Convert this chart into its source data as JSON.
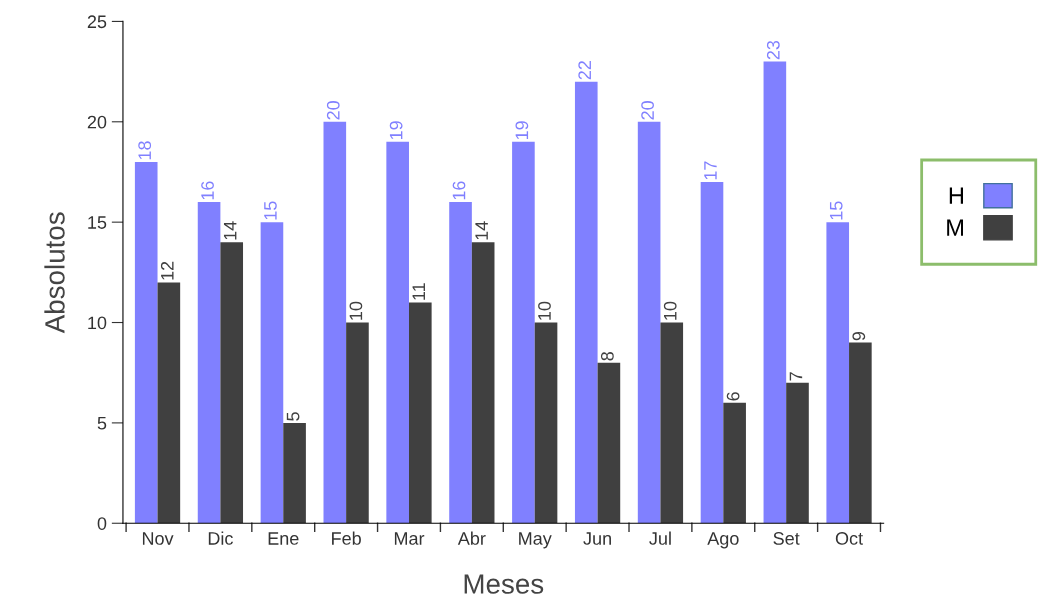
{
  "chart_data": {
    "type": "bar",
    "xlabel": "Meses",
    "ylabel": "Absolutos",
    "categories": [
      "Nov",
      "Dic",
      "Ene",
      "Feb",
      "Mar",
      "Abr",
      "May",
      "Jun",
      "Jul",
      "Ago",
      "Set",
      "Oct"
    ],
    "series": [
      {
        "name": "H",
        "color": "#8080ff",
        "values": [
          18,
          16,
          15,
          20,
          19,
          16,
          19,
          22,
          20,
          17,
          23,
          15
        ]
      },
      {
        "name": "M",
        "color": "#404040",
        "values": [
          12,
          14,
          5,
          10,
          11,
          14,
          10,
          8,
          10,
          6,
          7,
          9
        ]
      }
    ],
    "ylim": [
      0,
      25
    ],
    "yticks": [
      0,
      5,
      10,
      15,
      20,
      25
    ],
    "grid": false,
    "legend": "right",
    "data_labels": true
  }
}
